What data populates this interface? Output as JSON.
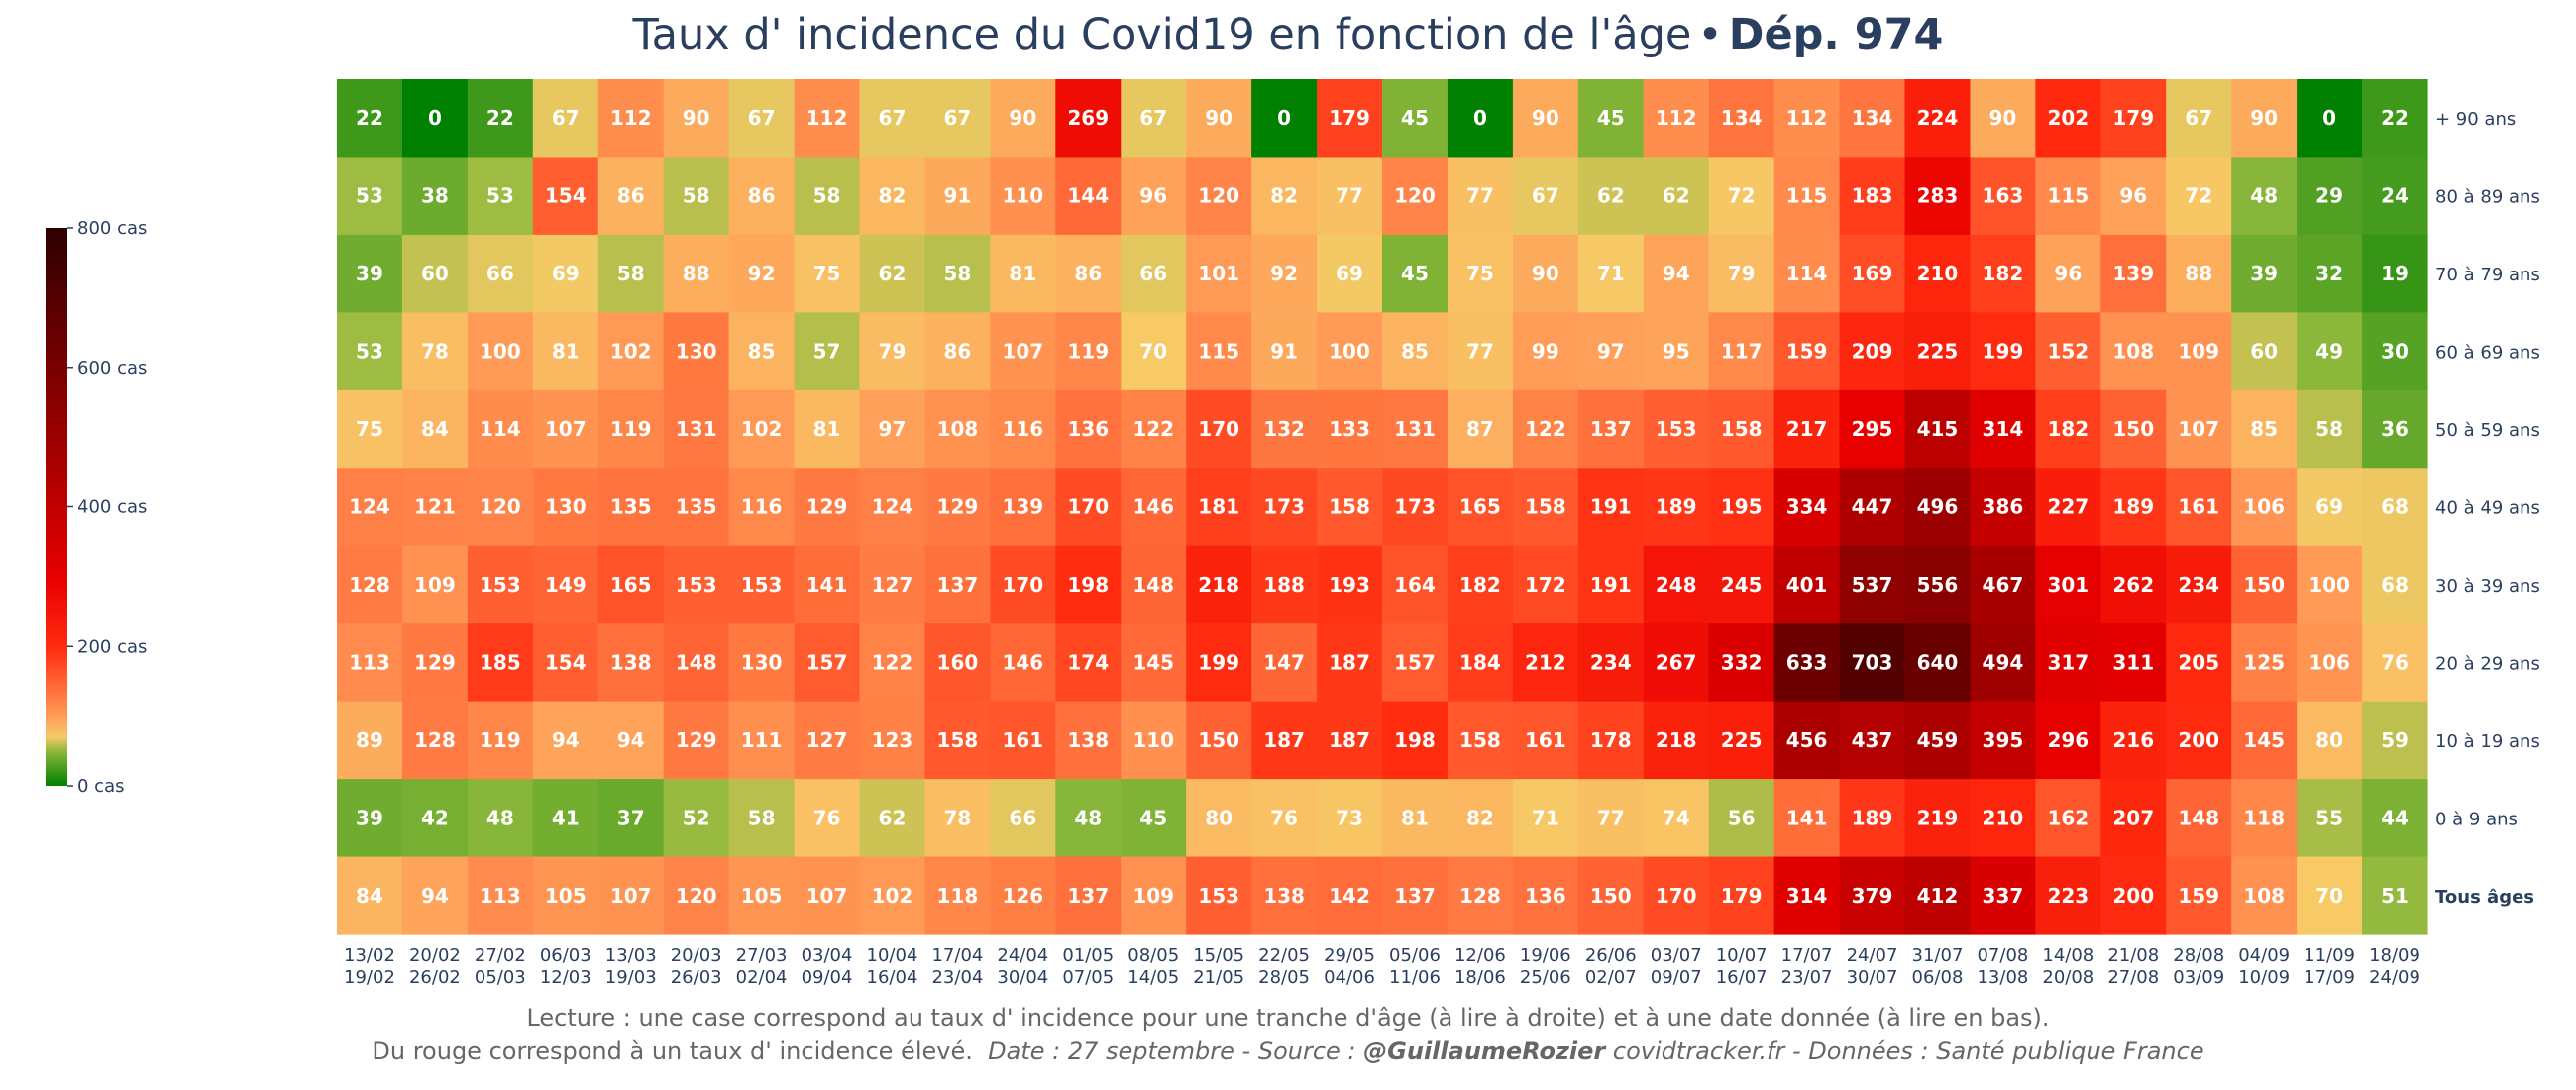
{
  "title": {
    "main": "Taux d' incidence du Covid19 en fonction de l'âge",
    "separator": "•",
    "bold": "Dép. 974"
  },
  "caption": {
    "line1": "Lecture : une case correspond au taux d' incidence pour une tranche d'âge (à lire à droite) et à une date donnée (à lire en bas).",
    "line2_text": "Du rouge correspond à un taux d' incidence élevé.",
    "line2_date_source": "Date : 27 septembre - Source :",
    "line2_author": "@GuillaumeRozier",
    "line2_rest": "covidtracker.fr - Données : Santé publique France"
  },
  "chart_data": {
    "type": "heatmap",
    "title": "Taux d' incidence du Covid19 en fonction de l'âge • Dép. 974",
    "x": [
      "13/02 19/02",
      "20/02 26/02",
      "27/02 05/03",
      "06/03 12/03",
      "13/03 19/03",
      "20/03 26/03",
      "27/03 02/04",
      "03/04 09/04",
      "10/04 16/04",
      "17/04 23/04",
      "24/04 30/04",
      "01/05 07/05",
      "08/05 14/05",
      "15/05 21/05",
      "22/05 28/05",
      "29/05 04/06",
      "05/06 11/06",
      "12/06 18/06",
      "19/06 25/06",
      "26/06 02/07",
      "03/07 09/07",
      "10/07 16/07",
      "17/07 23/07",
      "24/07 30/07",
      "31/07 06/08",
      "07/08 13/08",
      "14/08 20/08",
      "21/08 27/08",
      "28/08 03/09",
      "04/09 10/09",
      "11/09 17/09",
      "18/09 24/09"
    ],
    "x_lines": [
      [
        "13/02",
        "19/02"
      ],
      [
        "20/02",
        "26/02"
      ],
      [
        "27/02",
        "05/03"
      ],
      [
        "06/03",
        "12/03"
      ],
      [
        "13/03",
        "19/03"
      ],
      [
        "20/03",
        "26/03"
      ],
      [
        "27/03",
        "02/04"
      ],
      [
        "03/04",
        "09/04"
      ],
      [
        "10/04",
        "16/04"
      ],
      [
        "17/04",
        "23/04"
      ],
      [
        "24/04",
        "30/04"
      ],
      [
        "01/05",
        "07/05"
      ],
      [
        "08/05",
        "14/05"
      ],
      [
        "15/05",
        "21/05"
      ],
      [
        "22/05",
        "28/05"
      ],
      [
        "29/05",
        "04/06"
      ],
      [
        "05/06",
        "11/06"
      ],
      [
        "12/06",
        "18/06"
      ],
      [
        "19/06",
        "25/06"
      ],
      [
        "26/06",
        "02/07"
      ],
      [
        "03/07",
        "09/07"
      ],
      [
        "10/07",
        "16/07"
      ],
      [
        "17/07",
        "23/07"
      ],
      [
        "24/07",
        "30/07"
      ],
      [
        "31/07",
        "06/08"
      ],
      [
        "07/08",
        "13/08"
      ],
      [
        "14/08",
        "20/08"
      ],
      [
        "21/08",
        "27/08"
      ],
      [
        "28/08",
        "03/09"
      ],
      [
        "04/09",
        "10/09"
      ],
      [
        "11/09",
        "17/09"
      ],
      [
        "18/09",
        "24/09"
      ]
    ],
    "y": [
      "+ 90 ans",
      "80 à 89 ans",
      "70 à 79 ans",
      "60 à 69 ans",
      "50 à 59 ans",
      "40 à 49 ans",
      "30 à 39 ans",
      "20 à 29 ans",
      "10 à 19 ans",
      "0 à 9 ans",
      "Tous âges"
    ],
    "y_bold": "Tous âges",
    "z": [
      [
        22,
        0,
        22,
        67,
        112,
        90,
        67,
        112,
        67,
        67,
        90,
        269,
        67,
        90,
        0,
        179,
        45,
        0,
        90,
        45,
        112,
        134,
        112,
        134,
        224,
        90,
        202,
        179,
        67,
        90,
        0,
        22
      ],
      [
        53,
        38,
        53,
        154,
        86,
        58,
        86,
        58,
        82,
        91,
        110,
        144,
        96,
        120,
        82,
        77,
        120,
        77,
        67,
        62,
        62,
        72,
        115,
        183,
        283,
        163,
        115,
        96,
        72,
        48,
        29,
        24
      ],
      [
        39,
        60,
        66,
        69,
        58,
        88,
        92,
        75,
        62,
        58,
        81,
        86,
        66,
        101,
        92,
        69,
        45,
        75,
        90,
        71,
        94,
        79,
        114,
        169,
        210,
        182,
        96,
        139,
        88,
        39,
        32,
        19
      ],
      [
        53,
        78,
        100,
        81,
        102,
        130,
        85,
        57,
        79,
        86,
        107,
        119,
        70,
        115,
        91,
        100,
        85,
        77,
        99,
        97,
        95,
        117,
        159,
        209,
        225,
        199,
        152,
        108,
        109,
        60,
        49,
        30
      ],
      [
        75,
        84,
        114,
        107,
        119,
        131,
        102,
        81,
        97,
        108,
        116,
        136,
        122,
        170,
        132,
        133,
        131,
        87,
        122,
        137,
        153,
        158,
        217,
        295,
        415,
        314,
        182,
        150,
        107,
        85,
        58,
        36
      ],
      [
        124,
        121,
        120,
        130,
        135,
        135,
        116,
        129,
        124,
        129,
        139,
        170,
        146,
        181,
        173,
        158,
        173,
        165,
        158,
        191,
        189,
        195,
        334,
        447,
        496,
        386,
        227,
        189,
        161,
        106,
        69,
        68
      ],
      [
        128,
        109,
        153,
        149,
        165,
        153,
        153,
        141,
        127,
        137,
        170,
        198,
        148,
        218,
        188,
        193,
        164,
        182,
        172,
        191,
        248,
        245,
        401,
        537,
        556,
        467,
        301,
        262,
        234,
        150,
        100,
        68
      ],
      [
        113,
        129,
        185,
        154,
        138,
        148,
        130,
        157,
        122,
        160,
        146,
        174,
        145,
        199,
        147,
        187,
        157,
        184,
        212,
        234,
        267,
        332,
        633,
        703,
        640,
        494,
        317,
        311,
        205,
        125,
        106,
        76
      ],
      [
        89,
        128,
        119,
        94,
        94,
        129,
        111,
        127,
        123,
        158,
        161,
        138,
        110,
        150,
        187,
        187,
        198,
        158,
        161,
        178,
        218,
        225,
        456,
        437,
        459,
        395,
        296,
        216,
        200,
        145,
        80,
        59
      ],
      [
        39,
        42,
        48,
        41,
        37,
        52,
        58,
        76,
        62,
        78,
        66,
        48,
        45,
        80,
        76,
        73,
        81,
        82,
        71,
        77,
        74,
        56,
        141,
        189,
        219,
        210,
        162,
        207,
        148,
        118,
        55,
        44
      ],
      [
        84,
        94,
        113,
        105,
        107,
        120,
        105,
        107,
        102,
        118,
        126,
        137,
        109,
        153,
        138,
        142,
        137,
        128,
        136,
        150,
        170,
        179,
        314,
        379,
        412,
        337,
        223,
        200,
        159,
        108,
        70,
        51
      ]
    ],
    "colorscale": [
      [
        0,
        "#008000"
      ],
      [
        0.0625,
        "#8eb83c"
      ],
      [
        0.0875,
        "#f7ca66"
      ],
      [
        0.125,
        "#ff9b57"
      ],
      [
        0.25,
        "#ff2a0f"
      ],
      [
        0.37,
        "#e80000"
      ],
      [
        0.5,
        "#c00000"
      ],
      [
        0.75,
        "#780000"
      ],
      [
        1,
        "#2e0000"
      ]
    ],
    "zmin": 0,
    "zmax": 800,
    "colorbar": {
      "ticks": [
        0,
        200,
        400,
        600,
        800
      ],
      "tick_labels": [
        "0 cas",
        "200 cas",
        "400 cas",
        "600 cas",
        "800 cas"
      ]
    }
  }
}
